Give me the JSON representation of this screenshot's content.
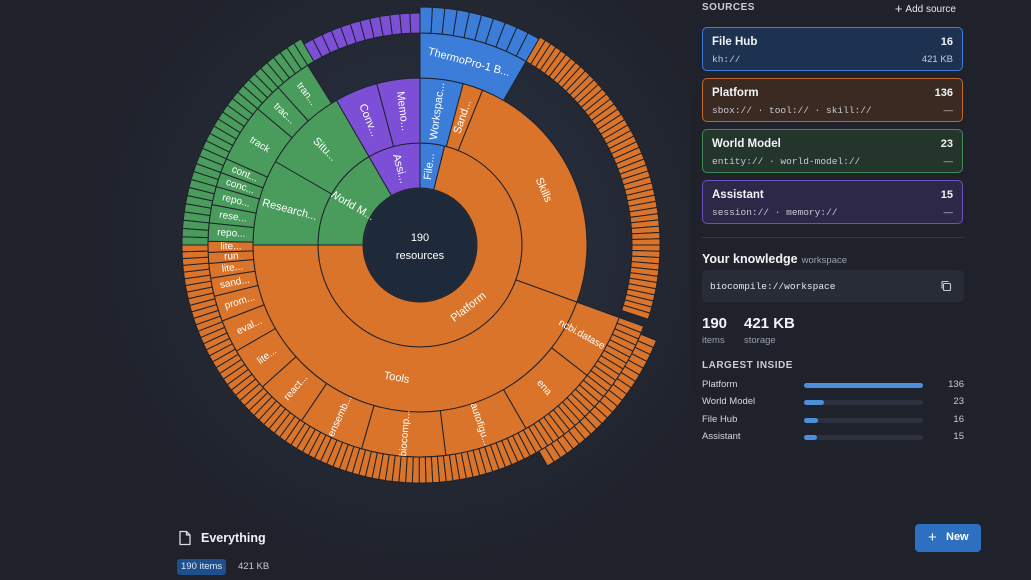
{
  "sources": {
    "title": "SOURCES",
    "add_label": "Add source",
    "items": [
      {
        "name": "File Hub",
        "count": "16",
        "prefixes": "kh://",
        "size": "421 KB",
        "color": "#3b7dd8"
      },
      {
        "name": "Platform",
        "count": "136",
        "prefixes": "sbox:// · tool:// · skill://",
        "size": "—",
        "color": "#e07b2a"
      },
      {
        "name": "World Model",
        "count": "23",
        "prefixes": "entity:// · world-model://",
        "size": "—",
        "color": "#4caf6a"
      },
      {
        "name": "Assistant",
        "count": "15",
        "prefixes": "session:// · memory://",
        "size": "—",
        "color": "#8b5cf6"
      }
    ]
  },
  "knowledge": {
    "title": "Your knowledge",
    "subtitle": "workspace",
    "uri": "biocompile://workspace",
    "copy_icon": "copy-icon",
    "items_value": "190",
    "items_label": "items",
    "storage_value": "421 KB",
    "storage_label": "storage"
  },
  "largest": {
    "title": "LARGEST INSIDE",
    "rows": [
      {
        "label": "Platform",
        "value": "136",
        "fraction": 1.0
      },
      {
        "label": "World Model",
        "value": "23",
        "fraction": 0.169
      },
      {
        "label": "File Hub",
        "value": "16",
        "fraction": 0.118
      },
      {
        "label": "Assistant",
        "value": "15",
        "fraction": 0.11
      }
    ]
  },
  "footer": {
    "title": "Everything",
    "icon": "document-icon",
    "count_badge": "190 items",
    "size": "421 KB",
    "new_label": "New"
  },
  "sunburst": {
    "center_value": "190",
    "center_label": "resources",
    "colors": {
      "file_hub": "#3b7dd8",
      "platform": "#d9742a",
      "world_model": "#4a9c5c",
      "assistant": "#7c4fd6"
    },
    "ring1": [
      {
        "label": "File...",
        "color": "file_hub"
      },
      {
        "label": "Platform",
        "color": "platform"
      },
      {
        "label": "World M...",
        "color": "world_model"
      },
      {
        "label": "Assi...",
        "color": "assistant"
      }
    ],
    "ring2": [
      {
        "label": "Workspac...",
        "color": "file_hub"
      },
      {
        "label": "Sand...",
        "color": "platform"
      },
      {
        "label": "Skills",
        "color": "platform"
      },
      {
        "label": "Tools",
        "color": "platform"
      },
      {
        "label": "Research...",
        "color": "world_model"
      },
      {
        "label": "Situ...",
        "color": "world_model"
      },
      {
        "label": "Conv...",
        "color": "assistant"
      },
      {
        "label": "Memo...",
        "color": "assistant"
      }
    ],
    "ring3": [
      {
        "label": "ThermoPro-1 B...",
        "color": "file_hub"
      },
      {
        "label": "ncbi.datase...",
        "color": "platform"
      },
      {
        "label": "ena",
        "color": "platform"
      },
      {
        "label": "autofigu...",
        "color": "platform"
      },
      {
        "label": "biocomp...",
        "color": "platform"
      },
      {
        "label": "ensemb...",
        "color": "platform"
      },
      {
        "label": "react...",
        "color": "platform"
      },
      {
        "label": "lite...",
        "color": "platform"
      },
      {
        "label": "eval...",
        "color": "platform"
      },
      {
        "label": "prom...",
        "color": "platform"
      },
      {
        "label": "sand...",
        "color": "platform"
      },
      {
        "label": "lite...",
        "color": "platform"
      },
      {
        "label": "run",
        "color": "platform"
      },
      {
        "label": "lite...",
        "color": "platform"
      },
      {
        "label": "repo...",
        "color": "world_model"
      },
      {
        "label": "rese...",
        "color": "world_model"
      },
      {
        "label": "repo...",
        "color": "world_model"
      },
      {
        "label": "conc...",
        "color": "world_model"
      },
      {
        "label": "cont...",
        "color": "world_model"
      },
      {
        "label": "track",
        "color": "world_model"
      },
      {
        "label": "trac...",
        "color": "world_model"
      },
      {
        "label": "tran...",
        "color": "world_model"
      }
    ]
  }
}
